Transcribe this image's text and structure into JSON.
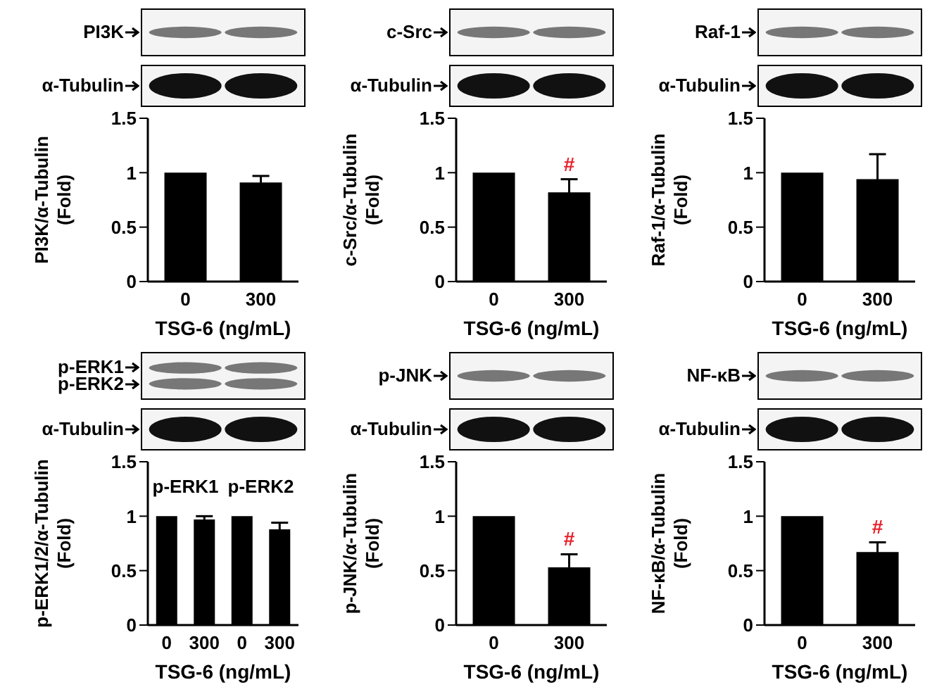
{
  "chart_data": [
    {
      "type": "bar",
      "categories": [
        "0",
        "300"
      ],
      "values": [
        1,
        0.91
      ],
      "errors": [
        null,
        0.06
      ],
      "color": "#000000",
      "xlabel": "TSG-6 (ng/mL)",
      "ylabel": "PI3K/α-Tubulin (Fold)",
      "ylim": [
        0,
        1.5
      ],
      "yticks": [
        0,
        0.5,
        1,
        1.5
      ],
      "annotations": [
        "PI3K",
        "α-Tubulin"
      ]
    },
    {
      "type": "bar",
      "categories": [
        "0",
        "300"
      ],
      "values": [
        1,
        0.82
      ],
      "errors": [
        null,
        0.12
      ],
      "color": "#000000",
      "xlabel": "TSG-6 (ng/mL)",
      "ylabel": "c-Src/α-Tubulin (Fold)",
      "ylim": [
        0,
        1.5
      ],
      "yticks": [
        0,
        0.5,
        1,
        1.5
      ],
      "annotations": [
        "c-Src",
        "α-Tubulin",
        {
          "text": "#",
          "x": "300",
          "y": 0.94
        }
      ]
    },
    {
      "type": "bar",
      "categories": [
        "0",
        "300"
      ],
      "values": [
        1,
        0.94
      ],
      "errors": [
        null,
        0.23
      ],
      "color": "#000000",
      "xlabel": "TSG-6 (ng/mL)",
      "ylabel": "Raf-1/α-Tubulin (Fold)",
      "ylim": [
        0,
        1.5
      ],
      "yticks": [
        0,
        0.5,
        1,
        1.5
      ],
      "annotations": [
        "Raf-1",
        "α-Tubulin"
      ]
    },
    {
      "type": "bar",
      "categories": [
        "0",
        "300",
        "0",
        "300"
      ],
      "values": [
        1,
        0.97,
        1,
        0.88
      ],
      "errors": [
        null,
        0.03,
        null,
        0.06
      ],
      "color": "#000000",
      "xlabel": "TSG-6 (ng/mL)",
      "ylabel": "p-ERK1/2/α-Tubulin (Fold)",
      "ylim": [
        0,
        1.5
      ],
      "yticks": [
        0,
        0.5,
        1,
        1.5
      ],
      "annotations": [
        "p-ERK1",
        "p-ERK2",
        "α-Tubulin",
        "p-ERK1",
        "p-ERK2"
      ]
    },
    {
      "type": "bar",
      "categories": [
        "0",
        "300"
      ],
      "values": [
        1,
        0.53
      ],
      "errors": [
        null,
        0.12
      ],
      "color": "#000000",
      "xlabel": "TSG-6 (ng/mL)",
      "ylabel": "p-JNK/α-Tubulin (Fold)",
      "ylim": [
        0,
        1.5
      ],
      "yticks": [
        0,
        0.5,
        1,
        1.5
      ],
      "annotations": [
        "p-JNK",
        "α-Tubulin",
        {
          "text": "#",
          "x": "300",
          "y": 0.65
        }
      ]
    },
    {
      "type": "bar",
      "categories": [
        "0",
        "300"
      ],
      "values": [
        1,
        0.67
      ],
      "errors": [
        null,
        0.09
      ],
      "color": "#000000",
      "xlabel": "TSG-6 (ng/mL)",
      "ylabel": "NF-κB/α-Tubulin (Fold)",
      "ylim": [
        0,
        1.5
      ],
      "yticks": [
        0,
        0.5,
        1,
        1.5
      ],
      "annotations": [
        "NF-κB",
        "α-Tubulin",
        {
          "text": "#",
          "x": "300",
          "y": 0.76
        }
      ]
    }
  ]
}
